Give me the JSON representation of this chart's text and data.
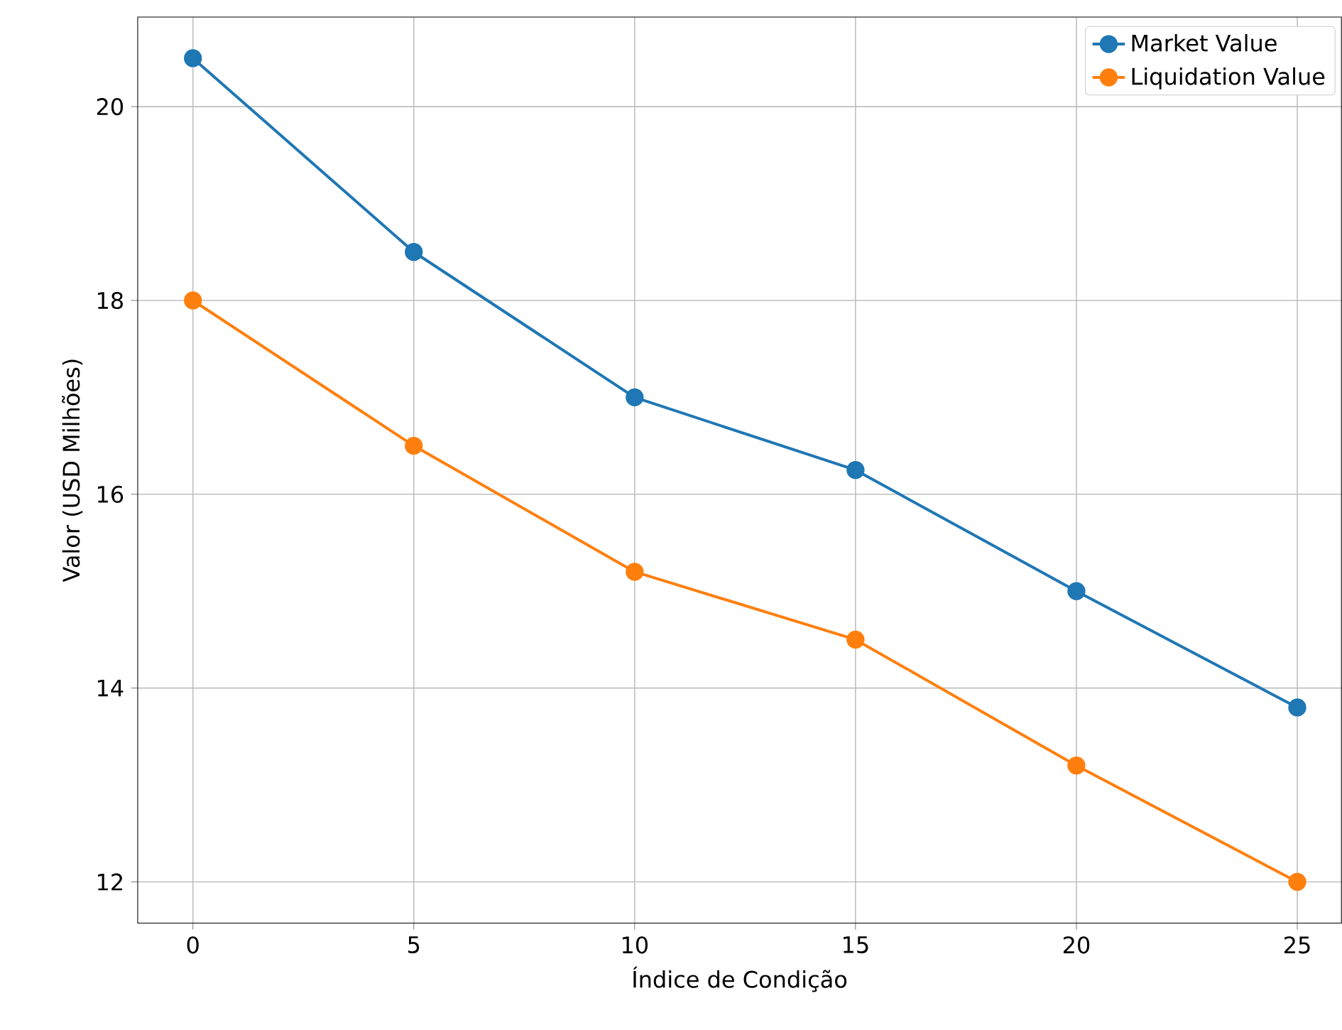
{
  "chart_data": {
    "type": "line",
    "xlabel": "Índice de Condição",
    "ylabel": "Valor (USD Milhões)",
    "x": [
      0,
      5,
      10,
      15,
      20,
      25
    ],
    "series": [
      {
        "name": "Market Value",
        "color": "#1f77b4",
        "values": [
          20.5,
          18.5,
          17.0,
          16.25,
          15.0,
          13.8
        ]
      },
      {
        "name": "Liquidation Value",
        "color": "#ff7f0e",
        "values": [
          18.0,
          16.5,
          15.2,
          14.5,
          13.2,
          12.0
        ]
      }
    ],
    "xlim": [
      -1.25,
      26.0
    ],
    "ylim": [
      11.575,
      20.925
    ],
    "xticks": [
      0,
      5,
      10,
      15,
      20,
      25
    ],
    "yticks": [
      12,
      14,
      16,
      18,
      20
    ],
    "grid": true,
    "legend": "top right",
    "marker": "circle",
    "line_style": "solid"
  }
}
